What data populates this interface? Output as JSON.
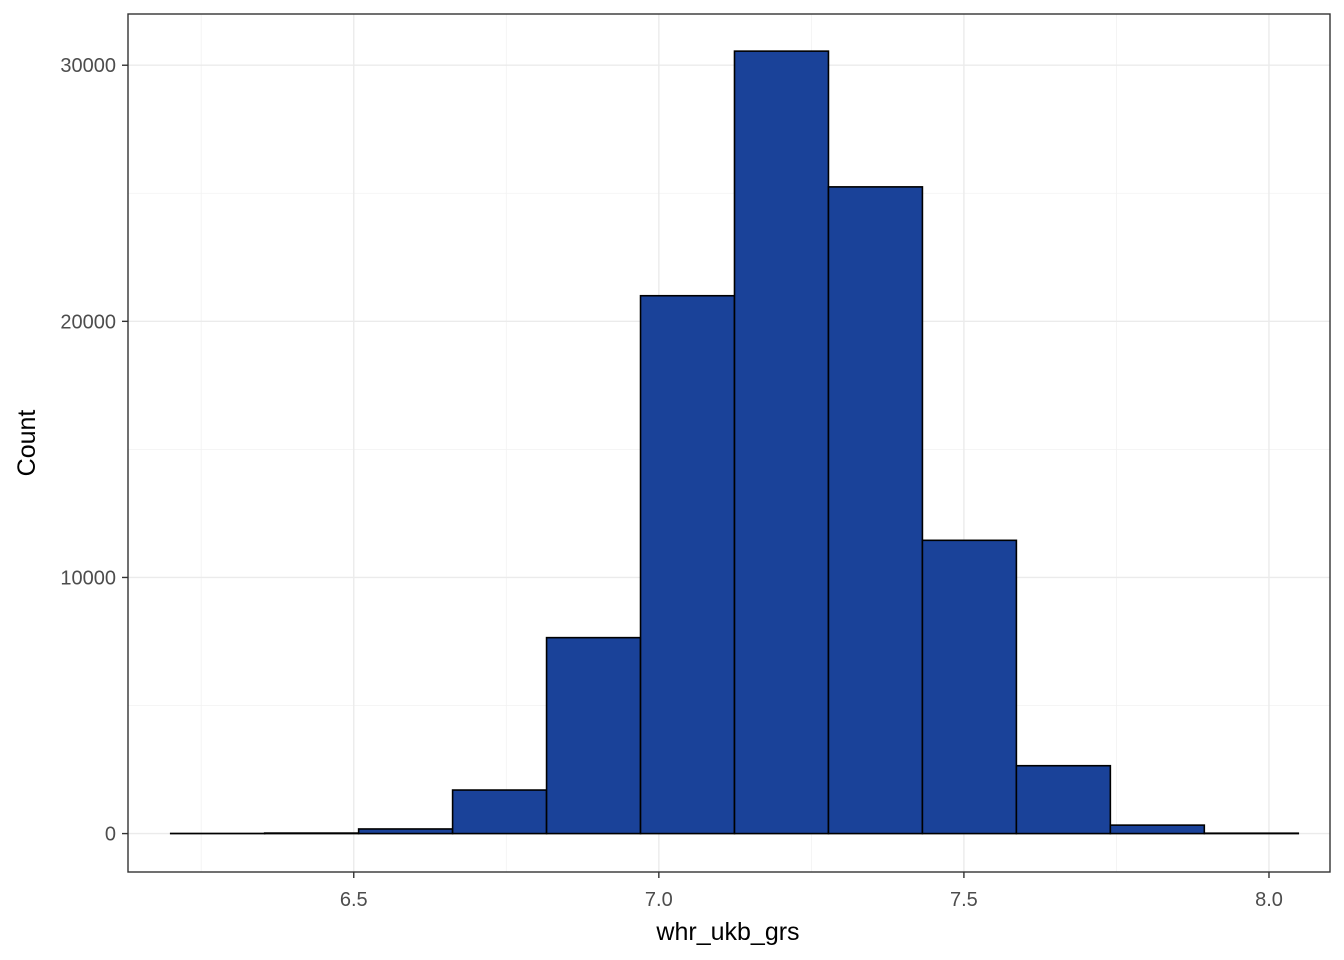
{
  "chart_data": {
    "type": "bar",
    "subtype": "histogram",
    "title": "",
    "xlabel": "whr_ukb_grs",
    "ylabel": "Count",
    "xlim": [
      6.13,
      8.1
    ],
    "ylim": [
      -1500,
      32000
    ],
    "x_ticks": [
      6.5,
      7.0,
      7.5,
      8.0
    ],
    "x_tick_labels": [
      "6.5",
      "7.0",
      "7.5",
      "8.0"
    ],
    "y_ticks": [
      0,
      10000,
      20000,
      30000
    ],
    "y_tick_labels": [
      "0",
      "10000",
      "20000",
      "30000"
    ],
    "grid": true,
    "legend": "none",
    "fill_color": "#1a4299",
    "bins": [
      {
        "x_start": 6.2,
        "x_end": 6.354,
        "count": 5
      },
      {
        "x_start": 6.354,
        "x_end": 6.508,
        "count": 20
      },
      {
        "x_start": 6.508,
        "x_end": 6.662,
        "count": 180
      },
      {
        "x_start": 6.662,
        "x_end": 6.816,
        "count": 1700
      },
      {
        "x_start": 6.816,
        "x_end": 6.97,
        "count": 7650
      },
      {
        "x_start": 6.97,
        "x_end": 7.124,
        "count": 21000
      },
      {
        "x_start": 7.124,
        "x_end": 7.278,
        "count": 30550
      },
      {
        "x_start": 7.278,
        "x_end": 7.432,
        "count": 25250
      },
      {
        "x_start": 7.432,
        "x_end": 7.586,
        "count": 11450
      },
      {
        "x_start": 7.586,
        "x_end": 7.74,
        "count": 2650
      },
      {
        "x_start": 7.74,
        "x_end": 7.894,
        "count": 330
      },
      {
        "x_start": 7.894,
        "x_end": 8.048,
        "count": 15
      }
    ]
  }
}
